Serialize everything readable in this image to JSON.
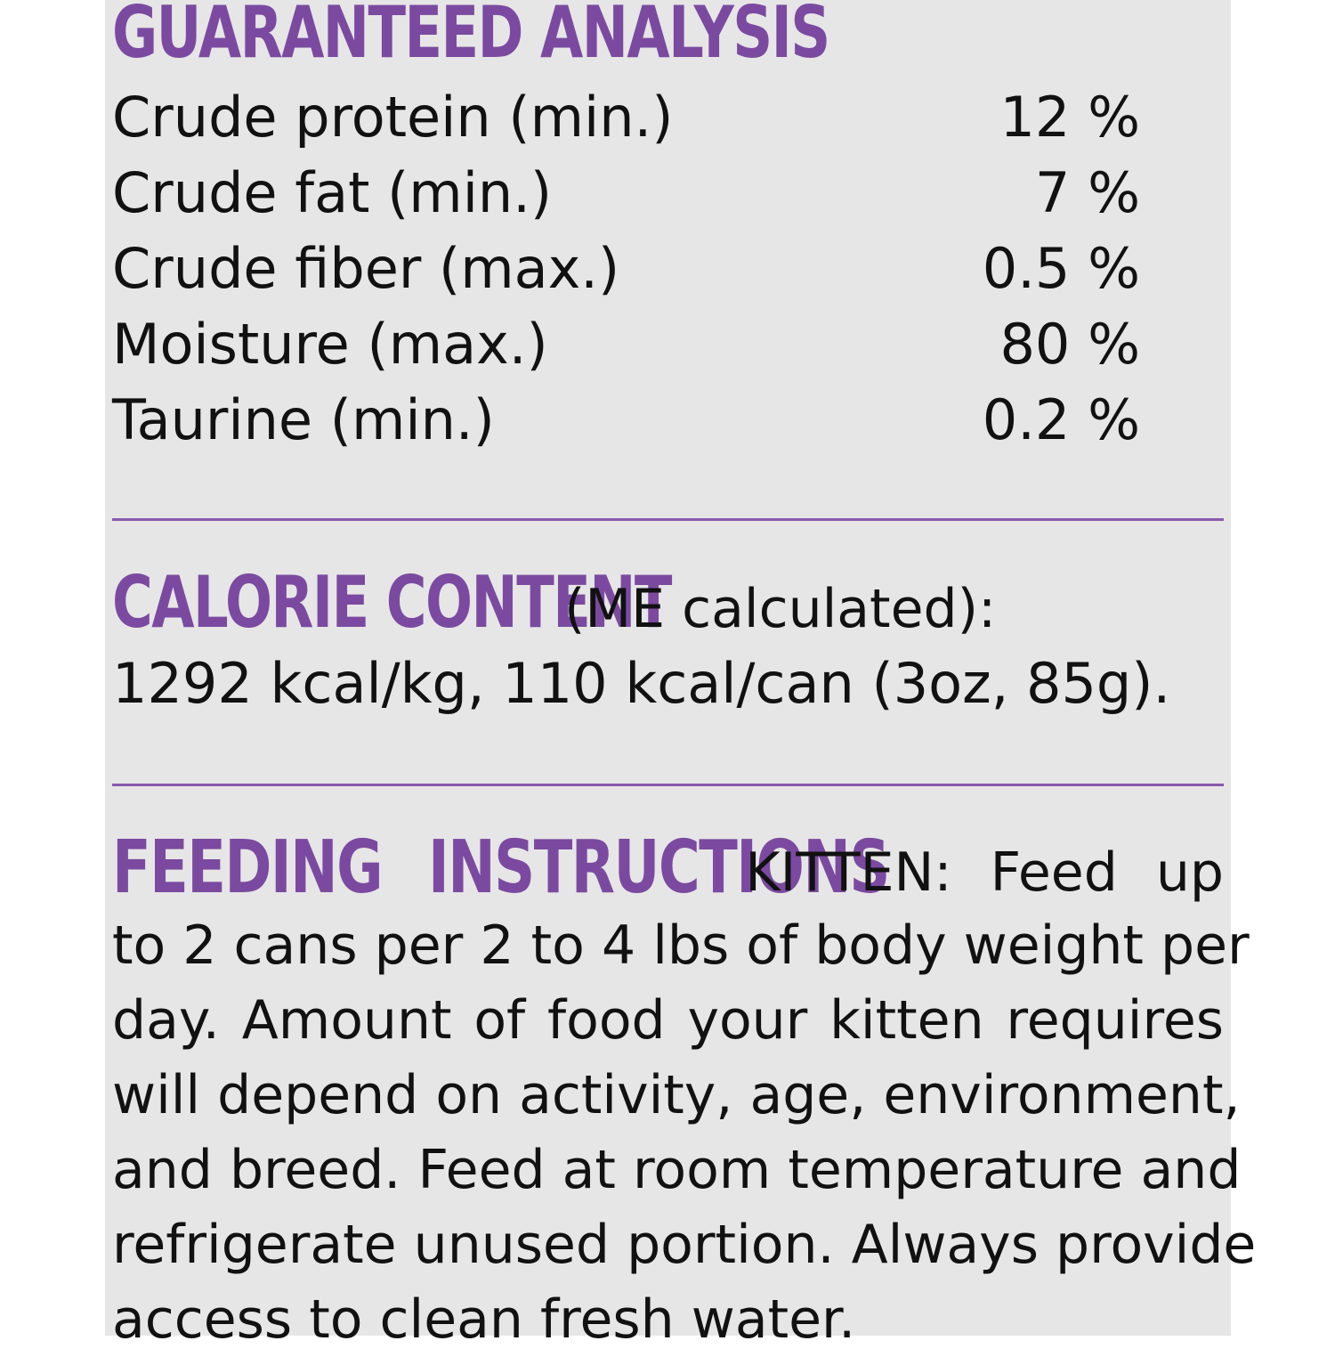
{
  "guaranteed_analysis": {
    "heading": "GUARANTEED ANALYSIS",
    "rows": [
      {
        "label": "Crude protein (min.)",
        "value": "12 %"
      },
      {
        "label": "Crude fat (min.)",
        "value": "7 %"
      },
      {
        "label": "Crude fiber (max.)",
        "value": "0.5 %"
      },
      {
        "label": "Moisture (max.)",
        "value": "80 %"
      },
      {
        "label": "Taurine (min.)",
        "value": "0.2 %"
      }
    ]
  },
  "calorie_content": {
    "heading": "CALORIE CONTENT",
    "subheading": "(ME calculated):",
    "text": "1292 kcal/kg, 110 kcal/can (3oz, 85g)."
  },
  "feeding_instructions": {
    "heading": "FEEDING INSTRUCTIONS",
    "intro": "KITTEN: Feed up",
    "lines": [
      "to 2 cans per 2 to 4 lbs of body weight per",
      "day. Amount of food your kitten requires",
      "will depend on activity, age, environment,",
      "and breed. Feed at room temperature and",
      "refrigerate unused portion. Always provide",
      "access to clean fresh water."
    ]
  },
  "colors": {
    "accent": "#7b4aa0",
    "panel_background": "#e6e6e6",
    "text": "#111111"
  }
}
